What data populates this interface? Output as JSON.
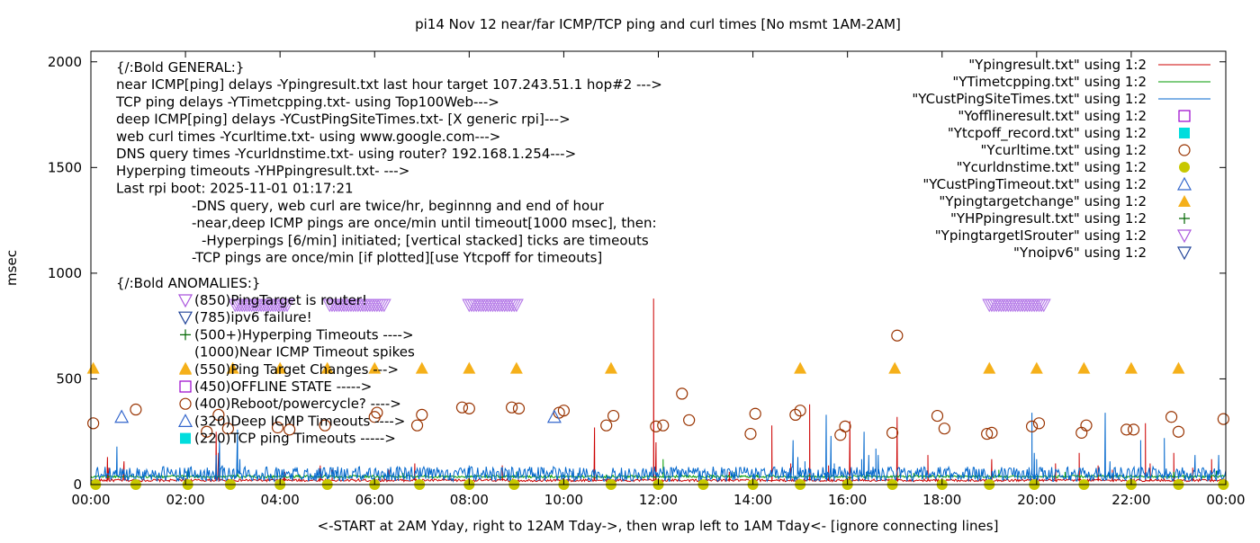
{
  "chart_data": {
    "type": "line",
    "title": "pi14 Nov 12  near/far ICMP/TCP ping and curl times [No msmt 1AM-2AM]",
    "xlabel": "<-START at 2AM Yday, right to 12AM Tday->, then wrap left to 1AM Tday<- [ignore connecting lines]",
    "ylabel": "msec",
    "xlim": [
      0,
      24
    ],
    "ylim": [
      0,
      2050
    ],
    "grid": false,
    "legend_position": "top-right",
    "x_ticks": [
      "00:00",
      "02:00",
      "04:00",
      "06:00",
      "08:00",
      "10:00",
      "12:00",
      "14:00",
      "16:00",
      "18:00",
      "20:00",
      "22:00",
      "00:00"
    ],
    "y_ticks": [
      "0",
      "500",
      "1000",
      "1500",
      "2000"
    ],
    "notes": [
      "{/:Bold GENERAL:}",
      "near ICMP[ping] delays -Ypingresult.txt last hour target 107.243.51.1 hop#2 --->",
      "TCP ping delays -YTimetcpping.txt- using Top100Web--->",
      "deep ICMP[ping] delays -YCustPingSiteTimes.txt- [X generic rpi]--->",
      "web curl times -Ycurltime.txt- using www.google.com--->",
      "DNS query times -Ycurldnstime.txt- using router? 192.168.1.254--->",
      "Hyperping timeouts -YHPpingresult.txt- --->",
      "Last rpi boot: 2025-11-01 01:17:21"
    ],
    "notes_indented": [
      "-DNS query, web curl are twice/hr, beginnng and end of hour",
      "-near,deep ICMP pings are once/min until timeout[1000 msec], then:",
      "  -Hyperpings [6/min] initiated; [vertical stacked] ticks are timeouts",
      "-TCP pings are once/min [if plotted][use Ytcpoff for timeouts]"
    ],
    "anomalies_title": "{/:Bold ANOMALIES:}",
    "anomalies": [
      {
        "marker": "tri-down-violet",
        "text": "(850)PingTarget is router!"
      },
      {
        "marker": "tri-down-blue",
        "text": "(785)ipv6 failure!"
      },
      {
        "marker": "plus-green",
        "text": "(500+)Hyperping Timeouts ---->"
      },
      {
        "marker": "none",
        "text": "(1000)Near ICMP Timeout spikes"
      },
      {
        "marker": "tri-up-orange",
        "text": "(550)Ping Target Changes --->"
      },
      {
        "marker": "square-purple",
        "text": "(450)OFFLINE STATE ----->"
      },
      {
        "marker": "circle-brown",
        "text": "(400)Reboot/powercycle? ---->"
      },
      {
        "marker": "tri-up-blue",
        "text": "(320)Deep ICMP Timeouts ---->"
      },
      {
        "marker": "square-cyan",
        "text": "(220)TCP ping Timeouts ----->"
      }
    ],
    "legend": [
      {
        "label": "\"Ypingresult.txt\" using 1:2",
        "marker": "line",
        "color": "#cc0000"
      },
      {
        "label": "\"YTimetcpping.txt\" using 1:2",
        "marker": "line",
        "color": "#009900"
      },
      {
        "label": "\"YCustPingSiteTimes.txt\" using 1:2",
        "marker": "line",
        "color": "#0066cc"
      },
      {
        "label": "\"Yofflineresult.txt\" using 1:2",
        "marker": "square-open",
        "color": "#9900cc"
      },
      {
        "label": "\"Ytcpoff_record.txt\" using 1:2",
        "marker": "square-filled",
        "color": "#00dddd"
      },
      {
        "label": "\"Ycurltime.txt\" using 1:2",
        "marker": "circle-open",
        "color": "#993300"
      },
      {
        "label": "\"Ycurldnstime.txt\" using 1:2",
        "marker": "circle-filled",
        "color": "#c8c800"
      },
      {
        "label": "\"YCustPingTimeout.txt\" using 1:2",
        "marker": "tri-up-open",
        "color": "#3366cc"
      },
      {
        "label": "\"Ypingtargetchange\" using 1:2",
        "marker": "tri-up-filled",
        "color": "#f5b01a"
      },
      {
        "label": "\"YHPpingresult.txt\" using 1:2",
        "marker": "plus",
        "color": "#006600"
      },
      {
        "label": "\"YpingtargetISrouter\" using 1:2",
        "marker": "tri-down-open",
        "color": "#aa55dd"
      },
      {
        "label": "\"Ynoipv6\" using 1:2",
        "marker": "tri-down-open",
        "color": "#224499"
      }
    ],
    "series": [
      {
        "name": "\"Ypingresult.txt\" using 1:2",
        "baseline": 20,
        "spikes": [
          [
            0.35,
            130
          ],
          [
            0.38,
            80
          ],
          [
            0.7,
            110
          ],
          [
            2.65,
            250
          ],
          [
            2.7,
            150
          ],
          [
            4.1,
            60
          ],
          [
            4.85,
            90
          ],
          [
            5.1,
            70
          ],
          [
            6.3,
            70
          ],
          [
            6.85,
            100
          ],
          [
            8.7,
            90
          ],
          [
            10.65,
            270
          ],
          [
            11.9,
            880
          ],
          [
            11.95,
            200
          ],
          [
            13.5,
            60
          ],
          [
            14.4,
            280
          ],
          [
            14.8,
            100
          ],
          [
            15.2,
            380
          ],
          [
            15.6,
            90
          ],
          [
            16.05,
            300
          ],
          [
            17.05,
            320
          ],
          [
            17.7,
            140
          ],
          [
            19.05,
            120
          ],
          [
            20.4,
            100
          ],
          [
            20.9,
            150
          ],
          [
            21.3,
            90
          ],
          [
            21.6,
            70
          ],
          [
            22.3,
            290
          ],
          [
            22.4,
            100
          ],
          [
            22.9,
            150
          ],
          [
            23.3,
            80
          ],
          [
            23.7,
            120
          ]
        ]
      },
      {
        "name": "\"YTimetcpping.txt\" using 1:2",
        "baseline": 38,
        "spikes": [
          [
            2.05,
            70
          ],
          [
            3.1,
            60
          ],
          [
            5.2,
            60
          ],
          [
            6.6,
            55
          ],
          [
            9.0,
            60
          ],
          [
            10.3,
            55
          ],
          [
            12.1,
            120
          ],
          [
            13.6,
            60
          ],
          [
            14.1,
            55
          ],
          [
            16.4,
            60
          ],
          [
            17.4,
            55
          ],
          [
            19.2,
            70
          ],
          [
            20.6,
            60
          ],
          [
            22.9,
            60
          ],
          [
            23.8,
            65
          ]
        ]
      },
      {
        "name": "\"YCustPingSiteTimes.txt\" using 1:2",
        "baseline": 50,
        "spikes": [
          [
            0.55,
            180
          ],
          [
            2.65,
            140
          ],
          [
            2.72,
            210
          ],
          [
            2.78,
            90
          ],
          [
            3.1,
            260
          ],
          [
            3.15,
            120
          ],
          [
            8.0,
            90
          ],
          [
            11.95,
            60
          ],
          [
            14.85,
            210
          ],
          [
            14.95,
            130
          ],
          [
            15.1,
            110
          ],
          [
            15.55,
            330
          ],
          [
            15.65,
            230
          ],
          [
            15.72,
            100
          ],
          [
            16.3,
            120
          ],
          [
            16.35,
            250
          ],
          [
            16.45,
            140
          ],
          [
            16.6,
            170
          ],
          [
            16.65,
            140
          ],
          [
            19.9,
            340
          ],
          [
            19.95,
            150
          ],
          [
            20.0,
            120
          ],
          [
            21.45,
            340
          ],
          [
            21.55,
            110
          ],
          [
            22.2,
            210
          ],
          [
            22.7,
            220
          ],
          [
            23.35,
            140
          ],
          [
            23.85,
            140
          ]
        ]
      },
      {
        "name": "\"Ycurltime.txt\" using 1:2",
        "marker": "circle-open",
        "color": "#993300",
        "points": [
          [
            0.05,
            290
          ],
          [
            0.95,
            355
          ],
          [
            2.45,
            250
          ],
          [
            2.7,
            330
          ],
          [
            2.9,
            265
          ],
          [
            3.95,
            270
          ],
          [
            4.2,
            260
          ],
          [
            4.95,
            280
          ],
          [
            6.0,
            320
          ],
          [
            6.05,
            340
          ],
          [
            6.9,
            280
          ],
          [
            7.0,
            330
          ],
          [
            7.85,
            365
          ],
          [
            8.0,
            360
          ],
          [
            8.9,
            365
          ],
          [
            9.05,
            360
          ],
          [
            9.9,
            340
          ],
          [
            10.0,
            350
          ],
          [
            10.9,
            280
          ],
          [
            11.05,
            325
          ],
          [
            11.95,
            275
          ],
          [
            12.1,
            280
          ],
          [
            12.5,
            430
          ],
          [
            12.65,
            305
          ],
          [
            13.95,
            240
          ],
          [
            14.05,
            335
          ],
          [
            14.9,
            330
          ],
          [
            15.0,
            350
          ],
          [
            15.85,
            235
          ],
          [
            15.95,
            275
          ],
          [
            16.95,
            245
          ],
          [
            17.05,
            705
          ],
          [
            17.9,
            325
          ],
          [
            18.05,
            265
          ],
          [
            18.95,
            240
          ],
          [
            19.05,
            245
          ],
          [
            19.9,
            275
          ],
          [
            20.05,
            290
          ],
          [
            20.95,
            245
          ],
          [
            21.05,
            280
          ],
          [
            21.9,
            260
          ],
          [
            22.05,
            260
          ],
          [
            22.85,
            320
          ],
          [
            23.0,
            250
          ],
          [
            23.95,
            310
          ]
        ]
      },
      {
        "name": "\"Ycurldnstime.txt\" using 1:2",
        "marker": "circle-filled",
        "color": "#c8c800",
        "points": [
          [
            0.1,
            0
          ],
          [
            0.95,
            0
          ],
          [
            2.05,
            0
          ],
          [
            2.95,
            0
          ],
          [
            4.0,
            0
          ],
          [
            5.0,
            0
          ],
          [
            6.0,
            0
          ],
          [
            6.95,
            0
          ],
          [
            8.0,
            0
          ],
          [
            8.95,
            0
          ],
          [
            10.0,
            0
          ],
          [
            11.0,
            0
          ],
          [
            12.0,
            0
          ],
          [
            12.95,
            0
          ],
          [
            14.0,
            0
          ],
          [
            15.0,
            0
          ],
          [
            16.0,
            0
          ],
          [
            16.95,
            0
          ],
          [
            18.0,
            0
          ],
          [
            19.0,
            0
          ],
          [
            19.95,
            0
          ],
          [
            21.0,
            0
          ],
          [
            22.0,
            0
          ],
          [
            23.0,
            0
          ],
          [
            23.95,
            0
          ]
        ]
      },
      {
        "name": "\"YCustPingTimeout.txt\" using 1:2",
        "marker": "tri-up-open",
        "color": "#3366cc",
        "points": [
          [
            0.65,
            320
          ],
          [
            9.8,
            320
          ]
        ]
      },
      {
        "name": "\"Ypingtargetchange\" using 1:2",
        "marker": "tri-up-filled",
        "color": "#f5b01a",
        "points": [
          [
            0.05,
            550
          ],
          [
            2.0,
            550
          ],
          [
            3.0,
            550
          ],
          [
            4.0,
            550
          ],
          [
            5.0,
            550
          ],
          [
            6.0,
            550
          ],
          [
            7.0,
            550
          ],
          [
            8.0,
            550
          ],
          [
            9.0,
            550
          ],
          [
            11.0,
            550
          ],
          [
            15.0,
            550
          ],
          [
            17.0,
            550
          ],
          [
            19.0,
            550
          ],
          [
            20.0,
            550
          ],
          [
            21.0,
            550
          ],
          [
            22.0,
            550
          ],
          [
            23.0,
            550
          ]
        ]
      },
      {
        "name": "\"YpingtargetISrouter\" using 1:2",
        "marker": "tri-down-open",
        "color": "#b57ae8",
        "ranges": [
          [
            3.05,
            4.15
          ],
          [
            5.05,
            6.2
          ],
          [
            8.0,
            9.05
          ],
          [
            19.0,
            20.2
          ]
        ],
        "value": 850
      }
    ]
  }
}
